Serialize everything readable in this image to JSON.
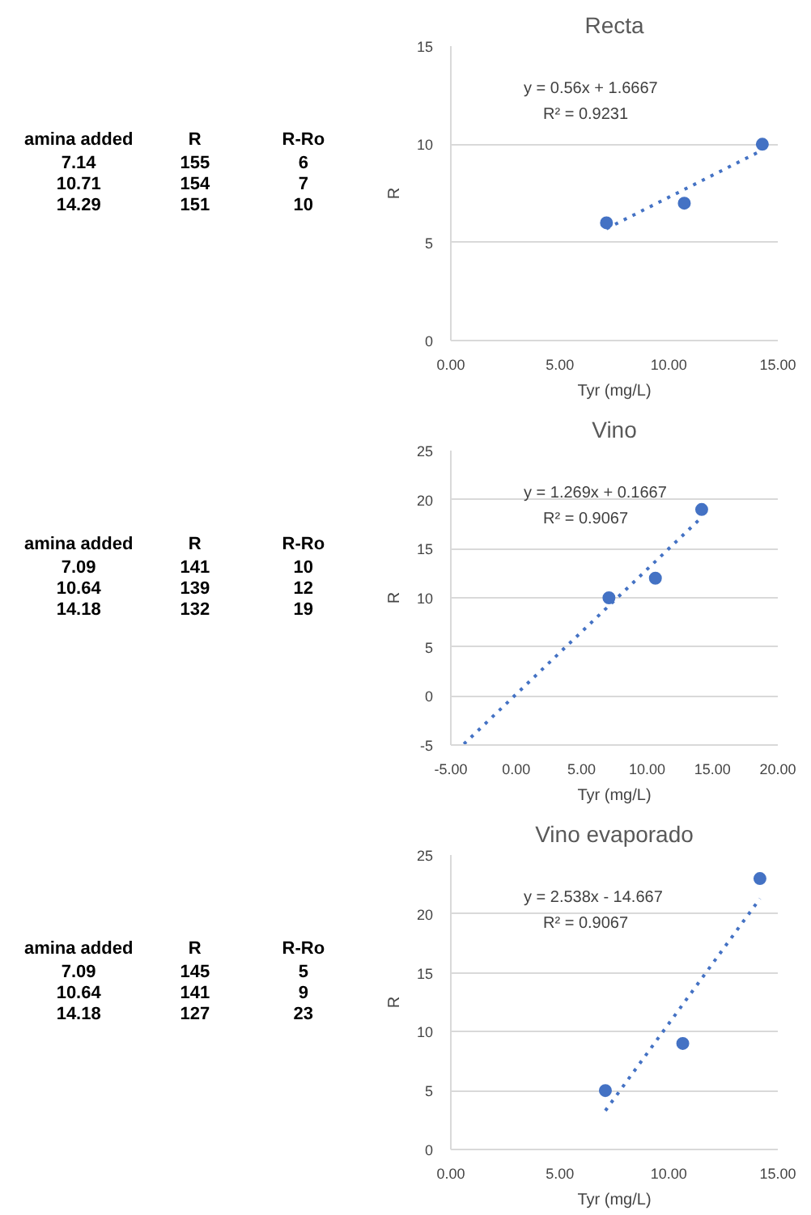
{
  "chart_data": [
    {
      "type": "other",
      "annotations": [
        "amina added",
        "R",
        "R-Ro",
        "7.14",
        "155",
        "6",
        "10.71",
        "154",
        "7",
        "14.29",
        "151",
        "10"
      ]
    },
    {
      "type": "scatter",
      "title": "Recta",
      "xlabel": "Tyr (mg/L)",
      "ylabel": "R",
      "grid": "y",
      "marker": "circle",
      "xlim": [
        0,
        15
      ],
      "xticks": [
        {
          "value": 0,
          "label": "0.00"
        },
        {
          "value": 5,
          "label": "5.00"
        },
        {
          "value": 10,
          "label": "10.00"
        },
        {
          "value": 15,
          "label": "15.00"
        }
      ],
      "ylim": [
        0,
        15
      ],
      "yticks": [
        0,
        5,
        10,
        15
      ],
      "annotations": [
        "y = 0.56x + 1.6667",
        "R² = 0.9231"
      ],
      "series": [
        {
          "type": "scatter",
          "color": "#4472c4",
          "x": [
            7.14,
            10.71,
            14.29
          ],
          "values": [
            6,
            7,
            10
          ]
        },
        {
          "type": "line",
          "color": "#4472c4",
          "line_style": "dotted",
          "marker": "none",
          "x": [
            7.14,
            14.29
          ],
          "values": [
            5.7,
            9.7
          ]
        }
      ]
    },
    {
      "type": "other",
      "annotations": [
        "amina added",
        "R",
        "R-Ro",
        "7.09",
        "141",
        "10",
        "10.64",
        "139",
        "12",
        "14.18",
        "132",
        "19"
      ]
    },
    {
      "type": "scatter",
      "title": "Vino",
      "xlabel": "Tyr (mg/L)",
      "ylabel": "R",
      "grid": "y",
      "marker": "circle",
      "xlim": [
        -5,
        20
      ],
      "xticks": [
        {
          "value": -5,
          "label": "-5.00"
        },
        {
          "value": 0,
          "label": "0.00"
        },
        {
          "value": 5,
          "label": "5.00"
        },
        {
          "value": 10,
          "label": "10.00"
        },
        {
          "value": 15,
          "label": "15.00"
        },
        {
          "value": 20,
          "label": "20.00"
        }
      ],
      "ylim": [
        -5,
        25
      ],
      "yticks": [
        -5,
        0,
        5,
        10,
        15,
        20,
        25
      ],
      "annotations": [
        "y = 1.269x + 0.1667",
        "R² = 0.9067"
      ],
      "series": [
        {
          "type": "scatter",
          "color": "#4472c4",
          "x": [
            7.09,
            10.64,
            14.18
          ],
          "values": [
            10,
            12,
            19
          ]
        },
        {
          "type": "line",
          "color": "#4472c4",
          "line_style": "dotted",
          "marker": "none",
          "x": [
            -4,
            14.18
          ],
          "values": [
            -4.9,
            18.2
          ]
        }
      ]
    },
    {
      "type": "other",
      "annotations": [
        "amina added",
        "R",
        "R-Ro",
        "7.09",
        "145",
        "5",
        "10.64",
        "141",
        "9",
        "14.18",
        "127",
        "23"
      ]
    },
    {
      "type": "scatter",
      "title": "Vino evaporado",
      "xlabel": "Tyr (mg/L)",
      "ylabel": "R",
      "grid": "y",
      "marker": "circle",
      "xlim": [
        0,
        15
      ],
      "xticks": [
        {
          "value": 0,
          "label": "0.00"
        },
        {
          "value": 5,
          "label": "5.00"
        },
        {
          "value": 10,
          "label": "10.00"
        },
        {
          "value": 15,
          "label": "15.00"
        }
      ],
      "ylim": [
        0,
        25
      ],
      "yticks": [
        0,
        5,
        10,
        15,
        20,
        25
      ],
      "annotations": [
        "y = 2.538x - 14.667",
        "R² = 0.9067"
      ],
      "series": [
        {
          "type": "scatter",
          "color": "#4472c4",
          "x": [
            7.09,
            10.64,
            14.18
          ],
          "values": [
            5,
            9,
            23
          ]
        },
        {
          "type": "line",
          "color": "#4472c4",
          "line_style": "dotted",
          "marker": "none",
          "x": [
            7.09,
            14.18
          ],
          "values": [
            3.3,
            21.3
          ]
        }
      ]
    }
  ]
}
